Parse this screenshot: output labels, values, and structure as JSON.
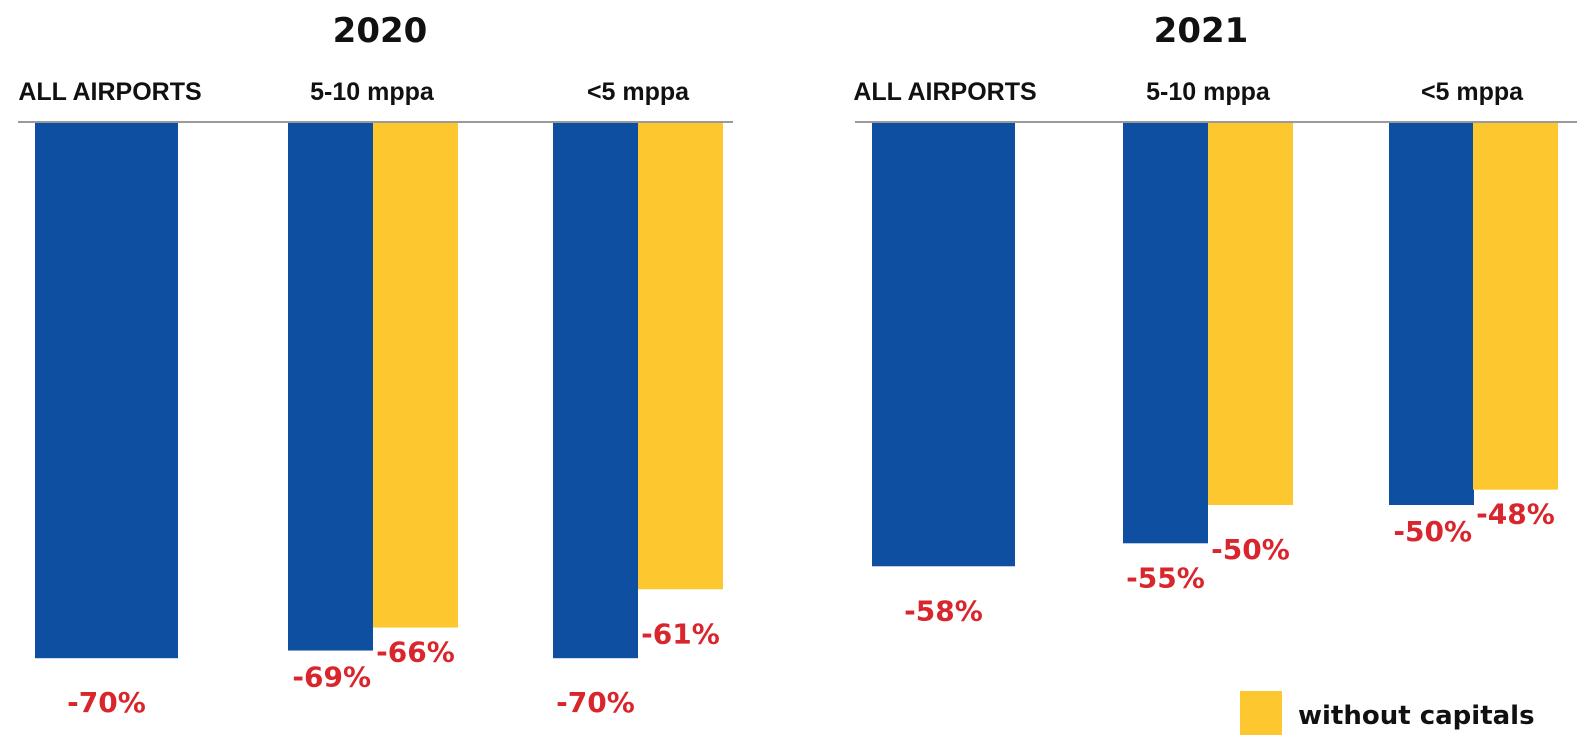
{
  "chart_data": [
    {
      "type": "bar",
      "title": "2020",
      "categories": [
        "ALL AIRPORTS",
        "5-10 mppa",
        "<5 mppa"
      ],
      "series": [
        {
          "values": [
            -70,
            -69,
            -70
          ],
          "labels": [
            "-70%",
            "-69%",
            "-70%"
          ]
        },
        {
          "name": "without capitals",
          "values": [
            null,
            -66,
            -61
          ],
          "labels": [
            "",
            "-66%",
            "-61%"
          ]
        }
      ],
      "ylim": [
        -75,
        0
      ],
      "grid": false
    },
    {
      "type": "bar",
      "title": "2021",
      "categories": [
        "ALL AIRPORTS",
        "5-10 mppa",
        "<5 mppa"
      ],
      "series": [
        {
          "values": [
            -58,
            -55,
            -50
          ],
          "labels": [
            "-58%",
            "-55%",
            "-50%"
          ]
        },
        {
          "name": "without capitals",
          "values": [
            null,
            -50,
            -48
          ],
          "labels": [
            "",
            "-50%",
            "-48%"
          ]
        }
      ],
      "ylim": [
        -75,
        0
      ],
      "grid": false
    }
  ],
  "legend": {
    "label": "without capitals",
    "placement": "bottom-right"
  },
  "colors": {
    "series_0": "#0f4fa1",
    "series_1": "#fdc82f",
    "value_labels": "#d8262c",
    "baseline": "#9a9a9a",
    "text": "#111111"
  }
}
